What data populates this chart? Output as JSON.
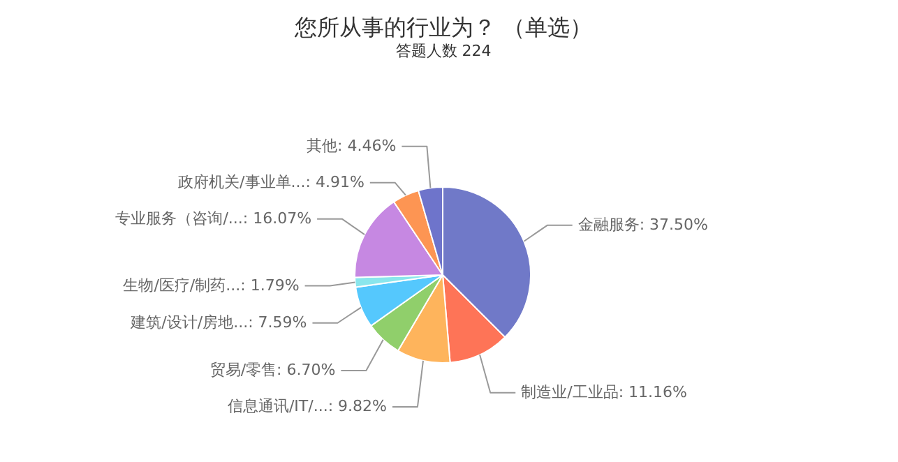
{
  "chart_data": {
    "type": "pie",
    "title": "您所从事的行业为？ （单选）",
    "subtitle": "答题人数 224",
    "categories": [
      "金融服务",
      "制造业/工业品",
      "信息通讯/IT/...",
      "贸易/零售",
      "建筑/设计/房地...",
      "生物/医疗/制药...",
      "专业服务（咨询/...",
      "政府机关/事业单...",
      "其他"
    ],
    "values": [
      37.5,
      11.16,
      9.82,
      6.7,
      7.59,
      1.79,
      16.07,
      4.91,
      4.46
    ],
    "value_labels": [
      "37.50%",
      "11.16%",
      "9.82%",
      "6.70%",
      "7.59%",
      "1.79%",
      "16.07%",
      "4.91%",
      "4.46%"
    ],
    "colors": [
      "#7079c8",
      "#fe7457",
      "#feb45c",
      "#90cf6b",
      "#55c8fd",
      "#8ae6ec",
      "#c688e2",
      "#fd9553",
      "#6e74cb"
    ],
    "legend": false
  }
}
